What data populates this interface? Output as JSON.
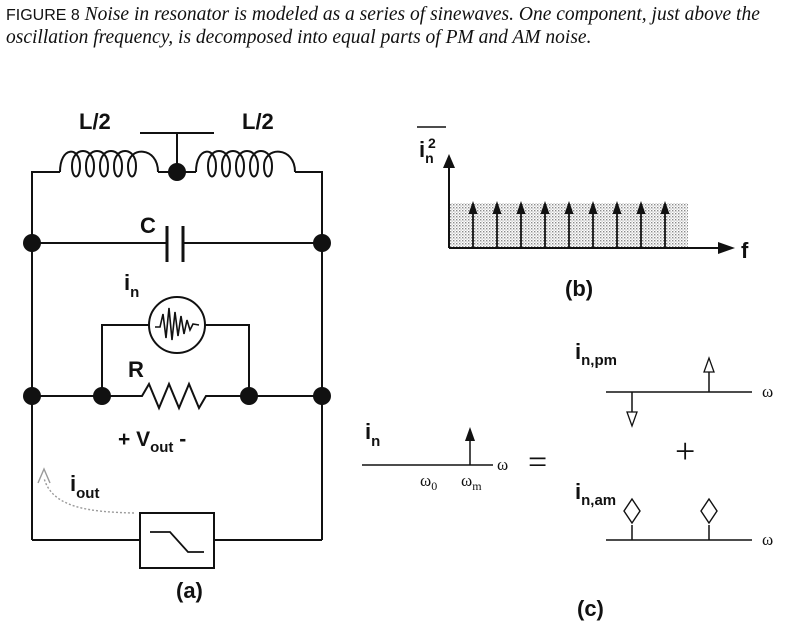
{
  "caption": {
    "figure_label": "FIGURE 8",
    "text": "Noise in resonator is modeled as a series of sinewaves. One component, just above the oscillation frequency, is decomposed into equal parts of PM and AM noise."
  },
  "panel_a": {
    "inductor_left": "L/2",
    "inductor_right": "L/2",
    "capacitor": "C",
    "noise_source_main": "i",
    "noise_source_sub": "n",
    "resistor": "R",
    "vout_prefix": "+ V",
    "vout_sub": "out",
    "vout_suffix": " -",
    "iout_main": "i",
    "iout_sub": "out",
    "label": "(a)"
  },
  "panel_b": {
    "y_main": "i",
    "y_sub": "n",
    "y_sup": "2",
    "x_axis": "f",
    "label": "(b)"
  },
  "panel_c": {
    "in_main": "i",
    "in_sub": "n",
    "omega": "ω",
    "omega0": "ω",
    "omega0_sub": "0",
    "omegam": "ω",
    "omegam_sub": "m",
    "equals": "=",
    "plus": "+",
    "pm_main": "i",
    "pm_sub": "n,pm",
    "am_main": "i",
    "am_sub": "n,am",
    "label": "(c)"
  }
}
